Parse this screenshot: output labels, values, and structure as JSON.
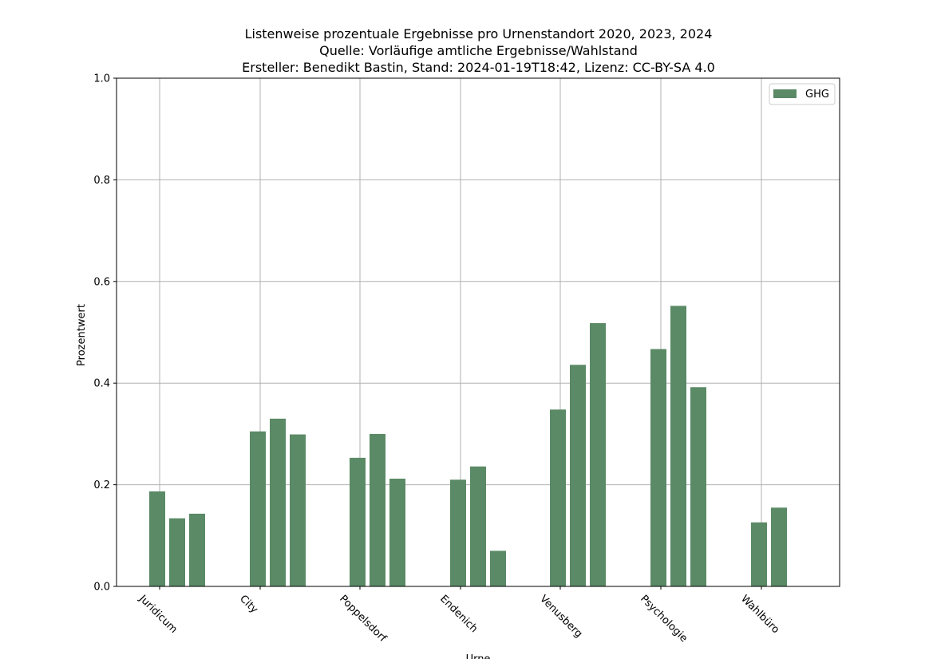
{
  "chart_data": {
    "type": "bar",
    "title_lines": [
      "Listenweise prozentuale Ergebnisse pro Urnenstandort 2020, 2023, 2024",
      "Quelle: Vorläufige amtliche Ergebnisse/Wahlstand",
      "Ersteller: Benedikt Bastin, Stand: 2024-01-19T18:42, Lizenz: CC-BY-SA 4.0"
    ],
    "xlabel": "Urne",
    "ylabel": "Prozentwert",
    "ylim": [
      0,
      1.0
    ],
    "yticks": [
      "0.0",
      "0.2",
      "0.4",
      "0.6",
      "0.8",
      "1.0"
    ],
    "grid": true,
    "legend": {
      "position": "top-right",
      "entries": [
        "GHG"
      ]
    },
    "color": "#5a8a66",
    "categories": [
      "Juridicum",
      "City",
      "Poppelsdorf",
      "Endenich",
      "Venusberg",
      "Psychologie",
      "Wahlbüro"
    ],
    "series": [
      {
        "name": "2020",
        "values": [
          0.187,
          0.305,
          0.253,
          0.21,
          0.348,
          0.467,
          0.126
        ]
      },
      {
        "name": "2023",
        "values": [
          0.134,
          0.33,
          0.3,
          0.236,
          0.436,
          0.552,
          0.155
        ]
      },
      {
        "name": "2024",
        "values": [
          0.143,
          0.299,
          0.212,
          0.07,
          0.518,
          0.392,
          null
        ]
      }
    ]
  }
}
